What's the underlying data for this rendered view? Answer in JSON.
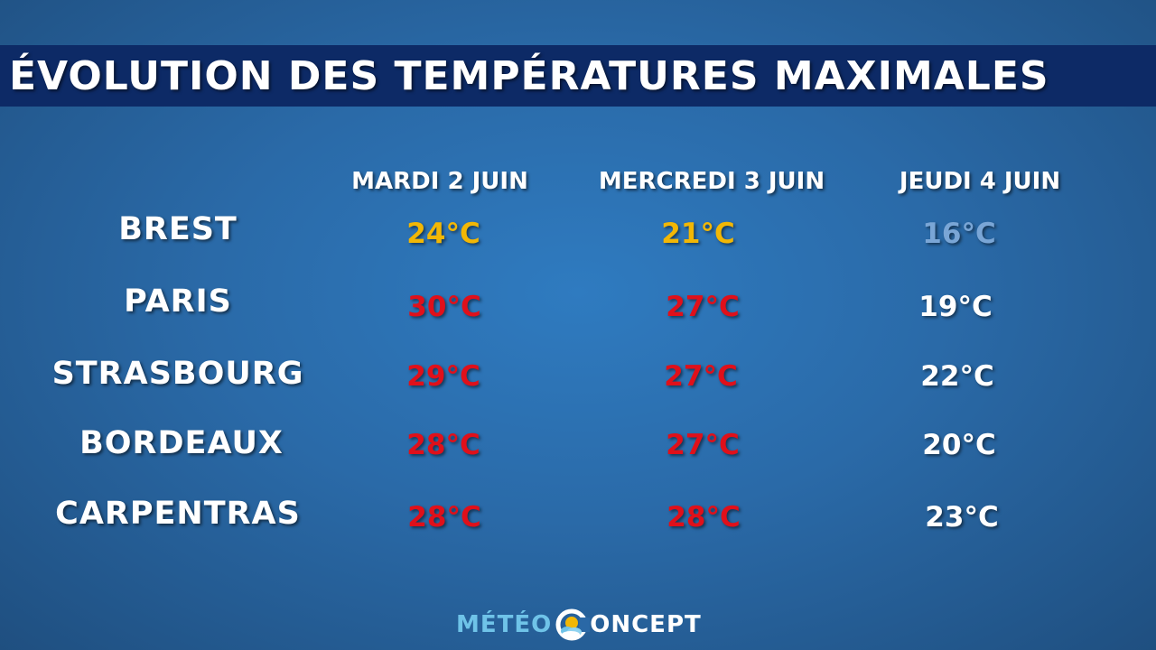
{
  "title": "ÉVOLUTION DES TEMPÉRATURES MAXIMALES",
  "columns": [
    "MARDI 2 JUIN",
    "MERCREDI 3 JUIN",
    "JEUDI 4 JUIN"
  ],
  "rows": [
    {
      "city": "BREST",
      "temps": [
        "24°C",
        "21°C",
        "16°C"
      ]
    },
    {
      "city": "PARIS",
      "temps": [
        "30°C",
        "27°C",
        "19°C"
      ]
    },
    {
      "city": "STRASBOURG",
      "temps": [
        "29°C",
        "27°C",
        "22°C"
      ]
    },
    {
      "city": "BORDEAUX",
      "temps": [
        "28°C",
        "27°C",
        "20°C"
      ]
    },
    {
      "city": "CARPENTRAS",
      "temps": [
        "28°C",
        "28°C",
        "23°C"
      ]
    }
  ],
  "colors": {
    "warm": "#f2b705",
    "hot": "#e0101a",
    "cool": "#7aa6d6",
    "mild": "#ffffff",
    "title_bar": "#0d2a66"
  },
  "temp_colors": [
    [
      "warm",
      "warm",
      "cool"
    ],
    [
      "hot",
      "hot",
      "mild"
    ],
    [
      "hot",
      "hot",
      "mild"
    ],
    [
      "hot",
      "hot",
      "mild"
    ],
    [
      "hot",
      "hot",
      "mild"
    ]
  ],
  "logo": {
    "part1": "MÉTÉO",
    "part2": "ONCEPT",
    "icon": "sun-cloud-logo-icon"
  }
}
